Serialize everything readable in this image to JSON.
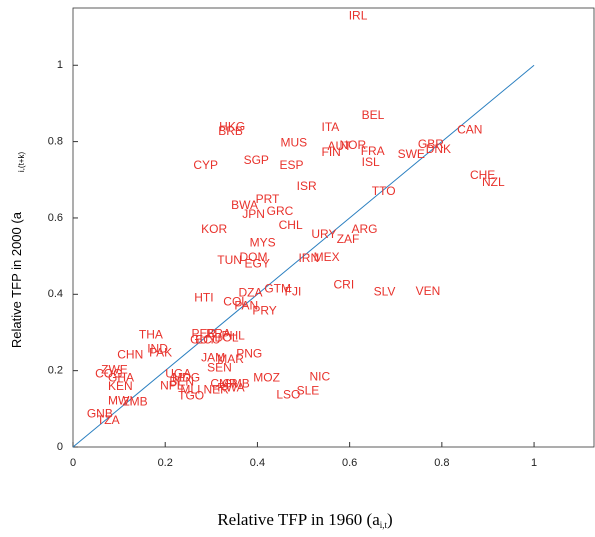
{
  "chart_data": {
    "type": "scatter",
    "xlabel": {
      "main": "Relative TFP in 1960 (a",
      "sub": "i,t",
      "end": ")"
    },
    "ylabel": {
      "main": "Relative TFP in 2000 (a",
      "sub": "i,(t+k)"
    },
    "xlim": [
      0,
      1.13
    ],
    "ylim": [
      0,
      1.15
    ],
    "xticks": [
      0,
      0.2,
      0.4,
      0.6,
      0.8,
      1
    ],
    "yticks": [
      0,
      0.2,
      0.4,
      0.6,
      0.8,
      1
    ],
    "color": "#e8322c",
    "line": {
      "x": [
        0,
        1
      ],
      "y": [
        0,
        1
      ],
      "color": "#2a7fc0"
    },
    "labels": [
      "IRL",
      "BEL",
      "ITA",
      "CAN",
      "HKG",
      "BRB",
      "MUS",
      "AUT",
      "NOR",
      "FIN",
      "FRA",
      "GBR",
      "DNK",
      "SWE",
      "ISL",
      "SGP",
      "ESP",
      "CYP",
      "CHE",
      "NZL",
      "ISR",
      "TTO",
      "PRT",
      "BWA",
      "GRC",
      "JPN",
      "CHL",
      "KOR",
      "ARG",
      "URY",
      "ZAF",
      "MYS",
      "DOM",
      "IRN",
      "MEX",
      "TUN",
      "EGY",
      "CRI",
      "GTM",
      "FJI",
      "SLV",
      "VEN",
      "DZA",
      "HTI",
      "COL",
      "PAN",
      "PRY",
      "THA",
      "PER",
      "BRA",
      "PHL",
      "GUY",
      "ECU",
      "BOL",
      "IND",
      "PAK",
      "CHN",
      "PNG",
      "JAM",
      "MAR",
      "SEN",
      "ZWE",
      "COG",
      "UGA",
      "GHA",
      "MOZ",
      "NIC",
      "MDG",
      "BEN",
      "CMR",
      "GMB",
      "NPL",
      "KEN",
      "MLI",
      "NER",
      "RWA",
      "SLE",
      "LSO",
      "TGO",
      "MWI",
      "ZMB",
      "GNB",
      "TZA"
    ],
    "x": [
      0.598,
      0.626,
      0.539,
      0.833,
      0.317,
      0.315,
      0.45,
      0.552,
      0.578,
      0.539,
      0.624,
      0.748,
      0.765,
      0.704,
      0.626,
      0.37,
      0.448,
      0.261,
      0.861,
      0.887,
      0.485,
      0.648,
      0.396,
      0.343,
      0.42,
      0.367,
      0.446,
      0.278,
      0.604,
      0.517,
      0.572,
      0.383,
      0.361,
      0.489,
      0.522,
      0.313,
      0.372,
      0.565,
      0.415,
      0.459,
      0.652,
      0.743,
      0.359,
      0.263,
      0.326,
      0.35,
      0.389,
      0.143,
      0.257,
      0.289,
      0.322,
      0.254,
      0.265,
      0.307,
      0.161,
      0.165,
      0.096,
      0.354,
      0.278,
      0.313,
      0.291,
      0.061,
      0.048,
      0.2,
      0.076,
      0.391,
      0.513,
      0.215,
      0.209,
      0.298,
      0.324,
      0.189,
      0.076,
      0.233,
      0.283,
      0.313,
      0.485,
      0.441,
      0.228,
      0.076,
      0.107,
      0.03,
      0.052
    ],
    "y": [
      1.128,
      0.867,
      0.836,
      0.83,
      0.838,
      0.825,
      0.796,
      0.786,
      0.789,
      0.77,
      0.773,
      0.791,
      0.778,
      0.765,
      0.744,
      0.749,
      0.736,
      0.736,
      0.71,
      0.692,
      0.681,
      0.668,
      0.648,
      0.632,
      0.616,
      0.608,
      0.58,
      0.569,
      0.569,
      0.556,
      0.543,
      0.533,
      0.496,
      0.493,
      0.496,
      0.488,
      0.478,
      0.423,
      0.413,
      0.405,
      0.405,
      0.407,
      0.402,
      0.389,
      0.379,
      0.368,
      0.355,
      0.292,
      0.295,
      0.295,
      0.29,
      0.279,
      0.279,
      0.285,
      0.256,
      0.245,
      0.24,
      0.243,
      0.232,
      0.228,
      0.206,
      0.201,
      0.191,
      0.191,
      0.18,
      0.18,
      0.183,
      0.18,
      0.17,
      0.164,
      0.164,
      0.159,
      0.157,
      0.149,
      0.149,
      0.154,
      0.146,
      0.136,
      0.133,
      0.12,
      0.117,
      0.086,
      0.068
    ]
  }
}
